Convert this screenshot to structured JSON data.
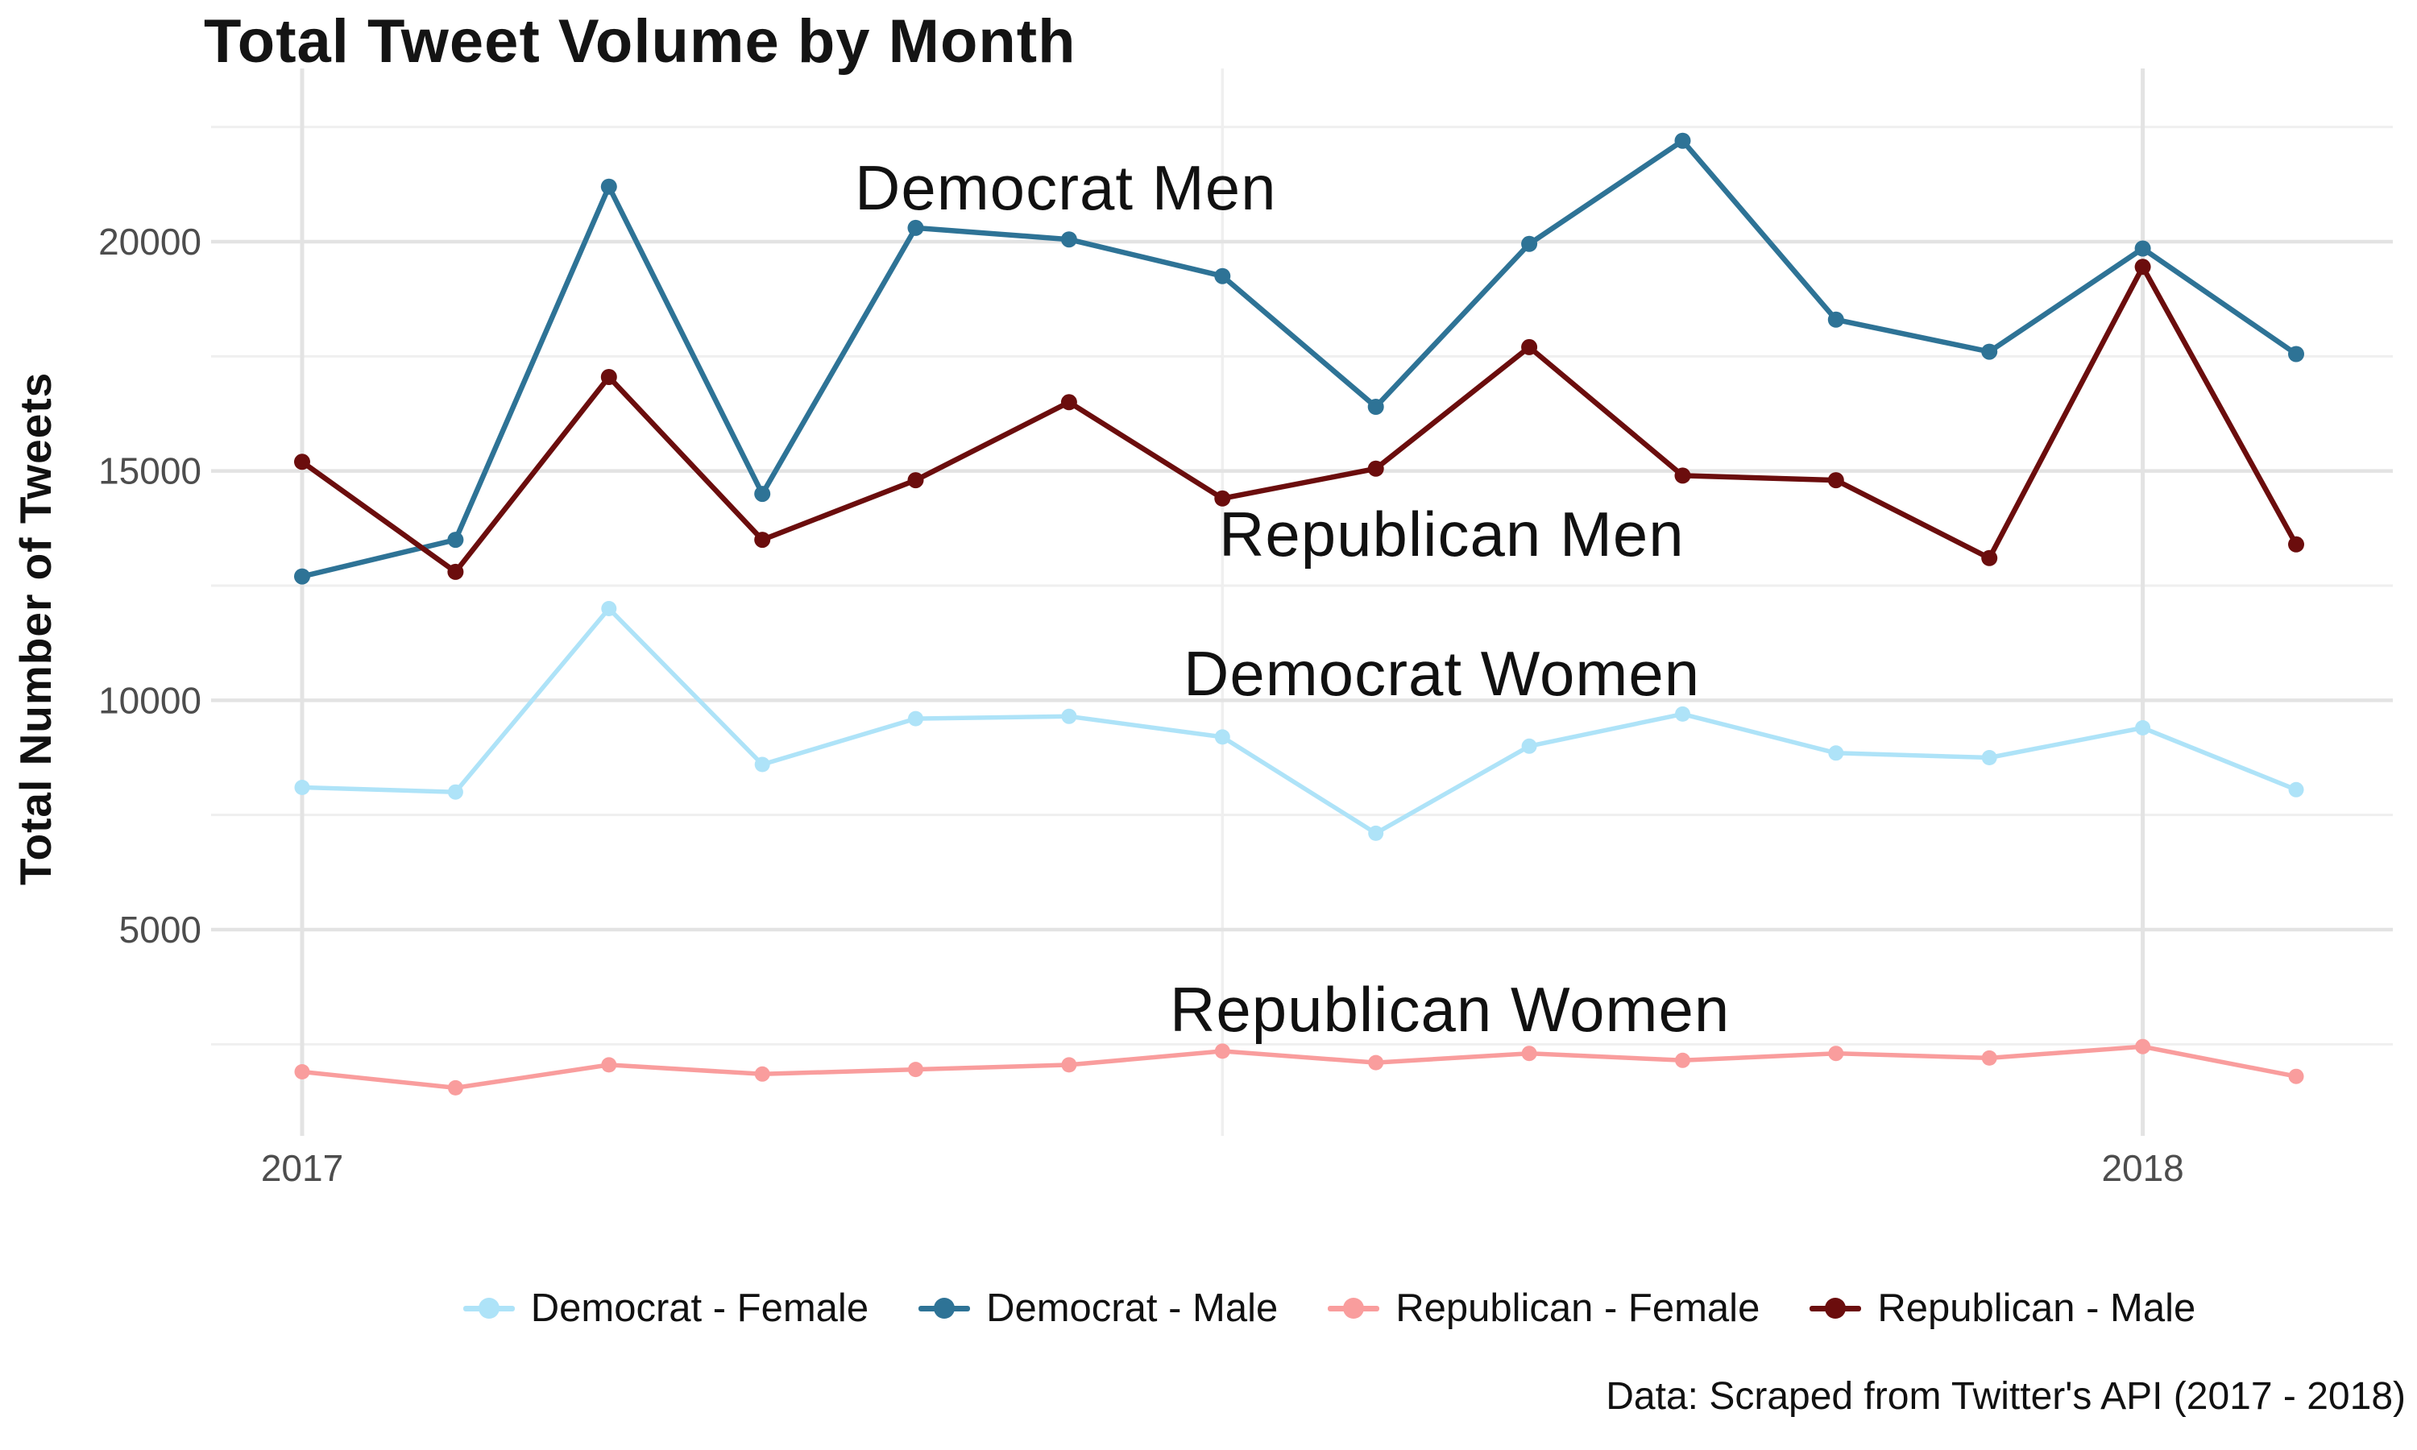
{
  "header": {
    "title": "Total Tweet Volume by Month"
  },
  "y_axis": {
    "label": "Total Number of Tweets",
    "tick_labels": [
      "5000",
      "10000",
      "15000",
      "20000"
    ]
  },
  "x_axis": {
    "tick_labels": [
      "2017",
      "2018"
    ]
  },
  "annotations": {
    "democrat_men": "Democrat Men",
    "republican_men": "Republican Men",
    "democrat_women": "Democrat Women",
    "republican_women": "Republican Women"
  },
  "legend": {
    "items": [
      {
        "label": "Democrat - Female",
        "color": "#AEE3F8"
      },
      {
        "label": "Democrat - Male",
        "color": "#2E7396"
      },
      {
        "label": "Republican - Female",
        "color": "#F99D9D"
      },
      {
        "label": "Republican - Male",
        "color": "#6B0D0D"
      }
    ]
  },
  "caption": "Data: Scraped from Twitter's API (2017 - 2018)",
  "colors": {
    "democrat_female": "#AEE3F8",
    "democrat_male": "#2E7396",
    "republican_female": "#F99D9D",
    "republican_male": "#6B0D0D",
    "grid_major": "#E3E3E3",
    "grid_minor": "#EFEFEF",
    "tick_text": "#4D4D4D"
  },
  "chart_data": {
    "type": "line",
    "title": "Total Tweet Volume by Month",
    "xlabel": "",
    "ylabel": "Total Number of Tweets",
    "x": [
      "Jan 2017",
      "Feb 2017",
      "Mar 2017",
      "Apr 2017",
      "May 2017",
      "Jun 2017",
      "Jul 2017",
      "Aug 2017",
      "Sep 2017",
      "Oct 2017",
      "Nov 2017",
      "Dec 2017",
      "Jan 2018",
      "Feb 2018"
    ],
    "x_tick_positions_months": [
      0,
      12
    ],
    "x_tick_labels": [
      "2017",
      "2018"
    ],
    "y_major_ticks": [
      5000,
      10000,
      15000,
      20000
    ],
    "y_minor_gridlines": [
      2500,
      7500,
      12500,
      17500,
      22500
    ],
    "vertical_gridline_major_months": [
      0,
      12
    ],
    "vertical_gridline_minor_months": [
      6
    ],
    "ylim": [
      500,
      23800
    ],
    "grid": true,
    "legend_position": "bottom",
    "series": [
      {
        "name": "Democrat - Female",
        "annotation": "Democrat Women",
        "color": "#AEE3F8",
        "values": [
          8100,
          8000,
          12000,
          8600,
          9600,
          9650,
          9200,
          7100,
          9000,
          9700,
          8850,
          8750,
          9400,
          8050
        ]
      },
      {
        "name": "Democrat - Male",
        "annotation": "Democrat Men",
        "color": "#2E7396",
        "values": [
          12700,
          13500,
          21200,
          14500,
          20300,
          20050,
          19250,
          16400,
          19950,
          22200,
          18300,
          17600,
          19850,
          17550
        ]
      },
      {
        "name": "Republican - Female",
        "annotation": "Republican Women",
        "color": "#F99D9D",
        "values": [
          1900,
          1550,
          2050,
          1850,
          1950,
          2050,
          2350,
          2100,
          2300,
          2150,
          2300,
          2200,
          2450,
          1800
        ]
      },
      {
        "name": "Republican - Male",
        "annotation": "Republican Men",
        "color": "#6B0D0D",
        "values": [
          15200,
          12800,
          17050,
          13500,
          14800,
          16500,
          14400,
          15050,
          17700,
          14900,
          14800,
          13100,
          19450,
          13400
        ]
      }
    ],
    "caption": "Data: Scraped from Twitter's API (2017 - 2018)"
  }
}
